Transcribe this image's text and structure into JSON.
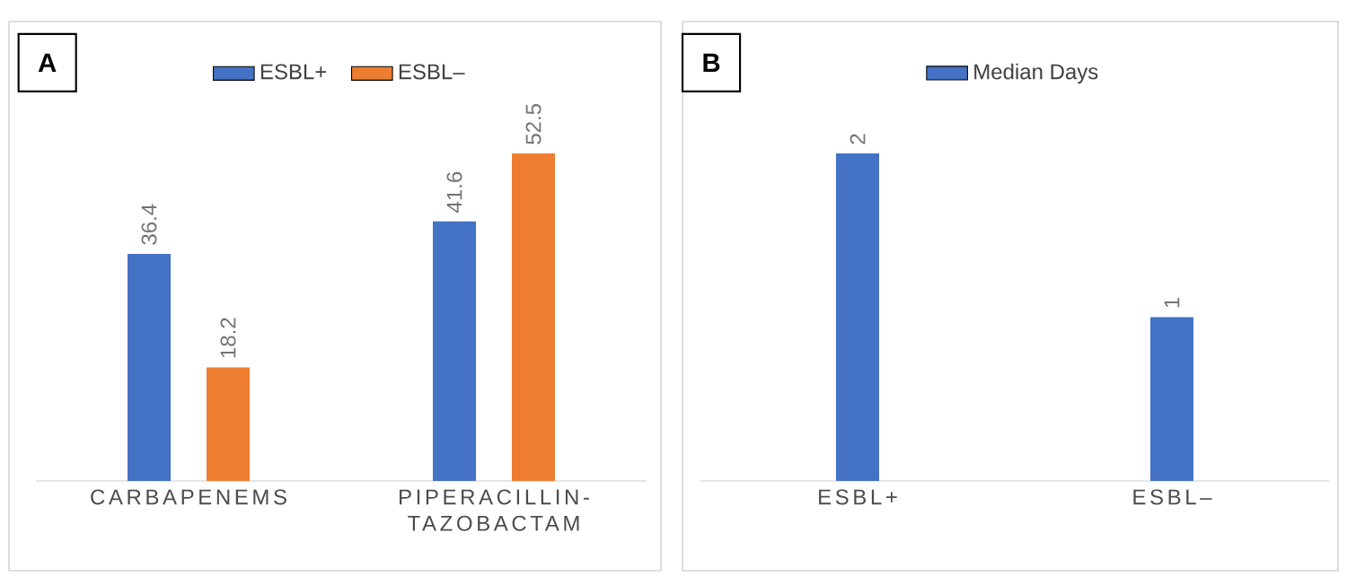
{
  "chart_data": [
    {
      "type": "bar",
      "categories": [
        "CARBAPENEMS",
        "PIPERACILLIN-TAZOBACTAM"
      ],
      "series": [
        {
          "name": "ESBL+",
          "color": "#4472c4",
          "values": [
            36.4,
            41.6
          ]
        },
        {
          "name": "ESBL–",
          "color": "#ed7d31",
          "values": [
            18.2,
            52.5
          ]
        }
      ],
      "data_labels": true,
      "legend": "top",
      "tick_labels": "x",
      "annotations": [
        "A"
      ]
    },
    {
      "type": "bar",
      "categories": [
        "ESBL+",
        "ESBL–"
      ],
      "series": [
        {
          "name": "Median Days",
          "color": "#4472c4",
          "values": [
            2,
            1
          ]
        }
      ],
      "data_labels": true,
      "legend": "top",
      "tick_labels": "x",
      "annotations": [
        "B"
      ]
    }
  ]
}
